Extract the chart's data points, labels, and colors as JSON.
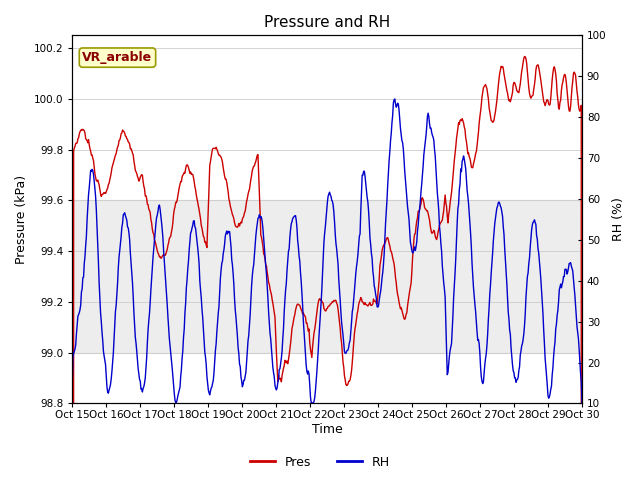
{
  "title": "Pressure and RH",
  "xlabel": "Time",
  "ylabel_left": "Pressure (kPa)",
  "ylabel_right": "RH (%)",
  "annotation_text": "VR_arable",
  "legend_labels": [
    "Pres",
    "RH"
  ],
  "pres_color": "#cc0000",
  "rh_color": "#0000cc",
  "pres_ylim": [
    98.8,
    100.25
  ],
  "rh_ylim": [
    10,
    100
  ],
  "xtick_labels": [
    "Oct 15",
    "Oct 16",
    "Oct 17",
    "Oct 18",
    "Oct 19",
    "Oct 20",
    "Oct 21",
    "Oct 22",
    "Oct 23",
    "Oct 24",
    "Oct 25",
    "Oct 26",
    "Oct 27",
    "Oct 28",
    "Oct 29",
    "Oct 30"
  ],
  "yticks_left": [
    98.8,
    99.0,
    99.2,
    99.4,
    99.6,
    99.8,
    100.0,
    100.2
  ],
  "yticks_right": [
    10,
    20,
    30,
    40,
    50,
    60,
    70,
    80,
    90,
    100
  ],
  "shaded_pres_low": 99.0,
  "shaded_pres_high": 99.6,
  "background_color": "#ffffff",
  "grid_color": "#cccccc",
  "title_fontsize": 11,
  "axis_label_fontsize": 9,
  "tick_fontsize": 7.5,
  "linewidth": 1.0
}
